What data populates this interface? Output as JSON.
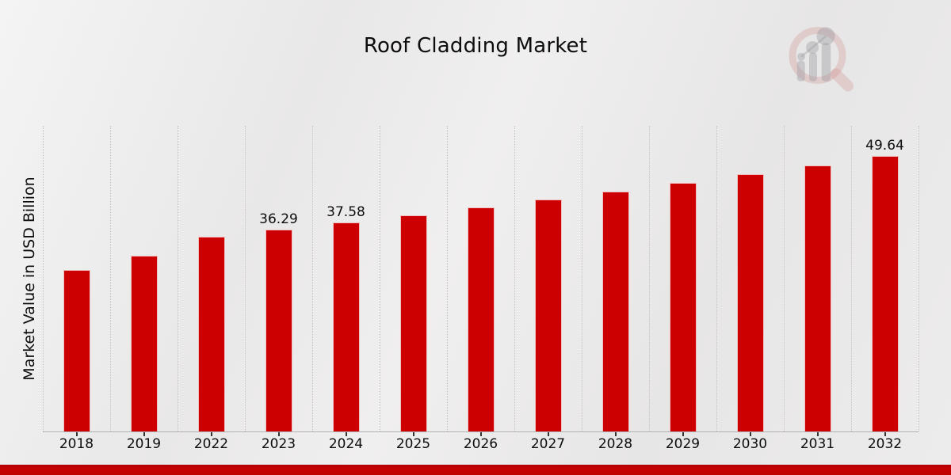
{
  "page": {
    "title": "Roof Cladding Market",
    "y_axis_label": "Market Value in USD Billion"
  },
  "chart_data": {
    "type": "bar",
    "title": "Roof Cladding Market",
    "xlabel": "",
    "ylabel": "Market Value in USD Billion",
    "categories": [
      "2018",
      "2019",
      "2022",
      "2023",
      "2024",
      "2025",
      "2026",
      "2027",
      "2028",
      "2029",
      "2030",
      "2031",
      "2032"
    ],
    "values": [
      29.0,
      31.7,
      35.05,
      36.29,
      37.58,
      38.91,
      40.29,
      41.71,
      43.19,
      44.72,
      46.3,
      47.94,
      49.64
    ],
    "bar_labels": [
      "",
      "",
      "",
      "36.29",
      "37.58",
      "",
      "",
      "",
      "",
      "",
      "",
      "",
      "49.64"
    ],
    "ylim": [
      0,
      55
    ],
    "grid": "vertical-dotted",
    "legend_position": "none",
    "series_name": "Market Value in USD Billion"
  },
  "colors": {
    "bar": "#cc0000",
    "footer_band": "#c20101",
    "gridline": "#c3c3c3",
    "axis_line": "#b2b2b2",
    "text": "#0d0d0d",
    "background": "#eceaea",
    "logo_ring": "#cf9f9f",
    "logo_gray": "#a9a9b0"
  },
  "logo": {
    "name": "magnifier-bar-chart-watermark"
  }
}
